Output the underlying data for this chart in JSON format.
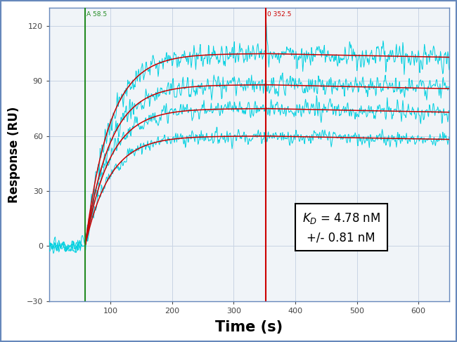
{
  "xlabel": "Time (s)",
  "ylabel": "Response (RU)",
  "xlim": [
    0,
    650
  ],
  "ylim": [
    -30,
    130
  ],
  "xticks": [
    100,
    200,
    300,
    400,
    500,
    600
  ],
  "yticks": [
    -30,
    0,
    30,
    60,
    90,
    120
  ],
  "vline_green_x": 58.5,
  "vline_green_label": "A 58.5",
  "vline_red_x": 352.5,
  "vline_red_label": "0 352.5",
  "assoc_start": 58.5,
  "assoc_end": 352.5,
  "dissoc_end": 650,
  "noise_color": "#00d0e0",
  "fit_color": "#cc0000",
  "bg_color": "#ffffff",
  "plot_bg_color": "#f0f4f8",
  "border_color": "#6688bb",
  "grid_color": "#c8d4e4",
  "kd_text": "$K_D$ = 4.78 nM\n+/- 0.81 nM",
  "noise_amplitude": [
    3.5,
    4.0,
    4.5,
    5.5
  ],
  "assoc_rmax": [
    60,
    75,
    88,
    105
  ],
  "dissoc_plateau": [
    48,
    62,
    74,
    92
  ],
  "tau_assoc": 40,
  "tau_dissoc": 1800
}
